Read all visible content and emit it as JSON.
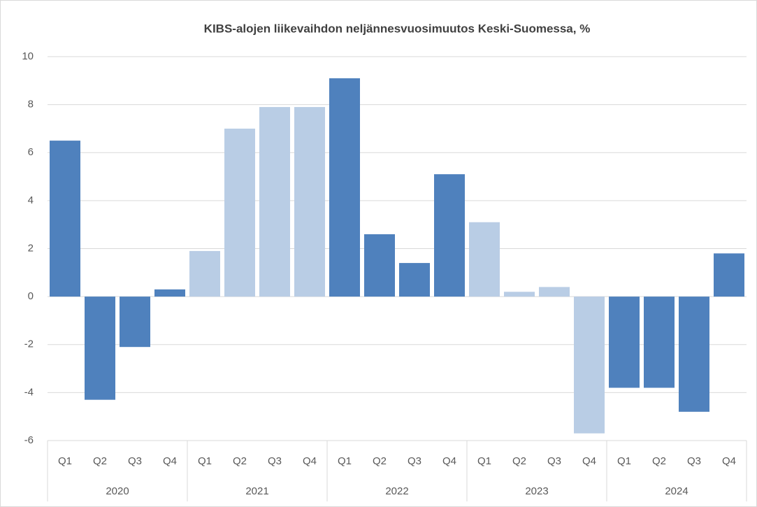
{
  "chart_data": {
    "type": "bar",
    "title": "KIBS-alojen liikevaihdon neljännesvuosimuutos Keski-Suomessa, %",
    "groups": [
      {
        "name": "2020",
        "color": "#4f81bd",
        "categories": [
          "Q1",
          "Q2",
          "Q3",
          "Q4"
        ],
        "values": [
          6.5,
          -4.3,
          -2.1,
          0.3
        ]
      },
      {
        "name": "2021",
        "color": "#b9cde5",
        "categories": [
          "Q1",
          "Q2",
          "Q3",
          "Q4"
        ],
        "values": [
          1.9,
          7.0,
          7.9,
          7.9
        ]
      },
      {
        "name": "2022",
        "color": "#4f81bd",
        "categories": [
          "Q1",
          "Q2",
          "Q3",
          "Q4"
        ],
        "values": [
          9.1,
          2.6,
          1.4,
          5.1
        ]
      },
      {
        "name": "2023",
        "color": "#b9cde5",
        "categories": [
          "Q1",
          "Q2",
          "Q3",
          "Q4"
        ],
        "values": [
          3.1,
          0.2,
          0.4,
          -5.7
        ]
      },
      {
        "name": "2024",
        "color": "#4f81bd",
        "categories": [
          "Q1",
          "Q2",
          "Q3",
          "Q4"
        ],
        "values": [
          -3.8,
          -3.8,
          -4.8,
          1.8
        ]
      }
    ],
    "ylim": [
      -6,
      10
    ],
    "yticks": [
      -6,
      -4,
      -2,
      0,
      2,
      4,
      6,
      8,
      10
    ],
    "grid": true
  }
}
